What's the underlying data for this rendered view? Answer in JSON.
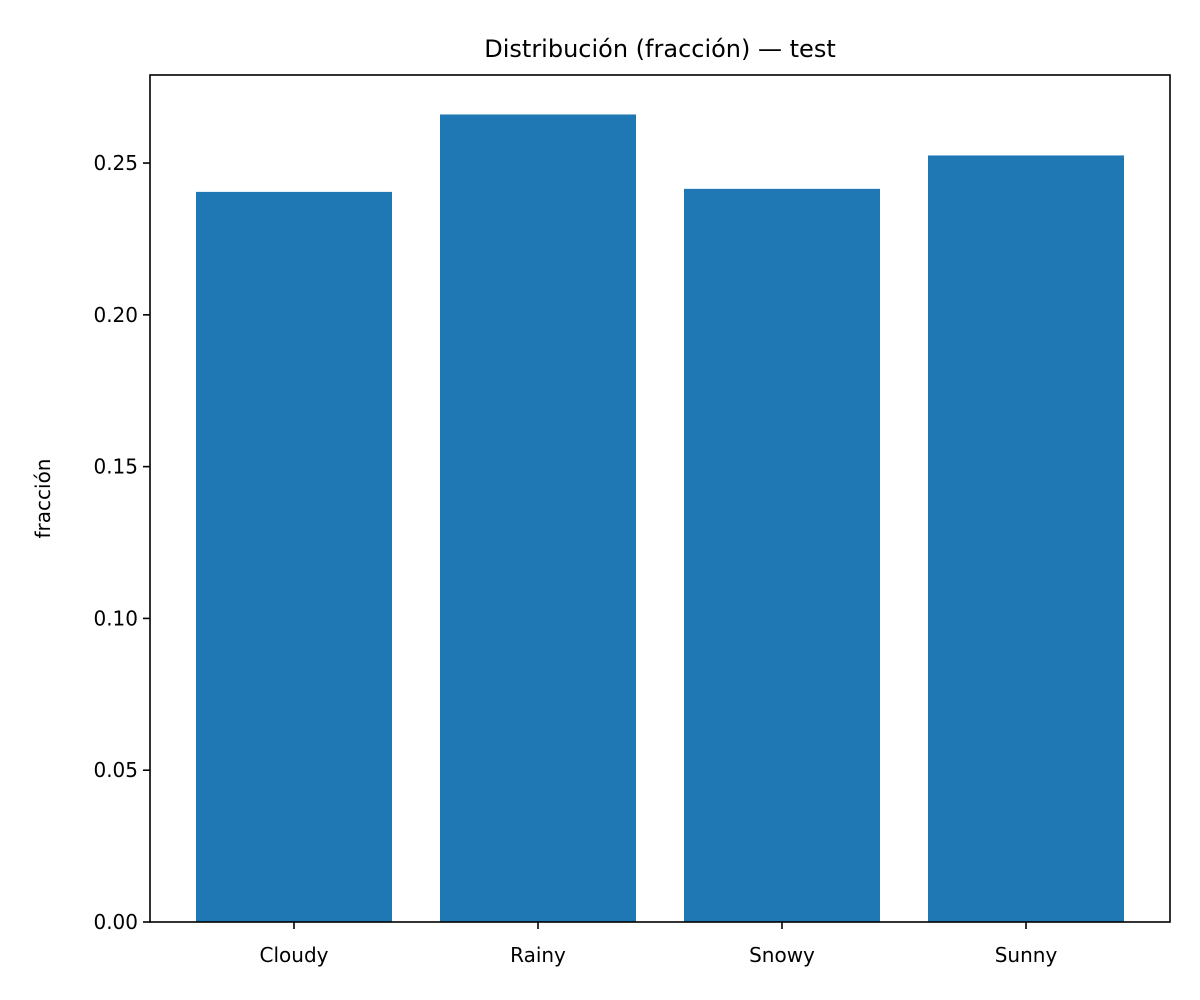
{
  "chart_data": {
    "type": "bar",
    "title": "Distribución (fracción) — test",
    "xlabel": "",
    "ylabel": "fracción",
    "categories": [
      "Cloudy",
      "Rainy",
      "Snowy",
      "Sunny"
    ],
    "values": [
      0.2405,
      0.266,
      0.2415,
      0.2525
    ],
    "ylim": [
      0,
      0.279
    ],
    "yticks": [
      0,
      0.05,
      0.1,
      0.15,
      0.2,
      0.25
    ],
    "ytick_labels": [
      "0.00",
      "0.05",
      "0.10",
      "0.15",
      "0.20",
      "0.25"
    ],
    "bar_color": "#1f77b4",
    "grid": false,
    "legend": "none"
  }
}
